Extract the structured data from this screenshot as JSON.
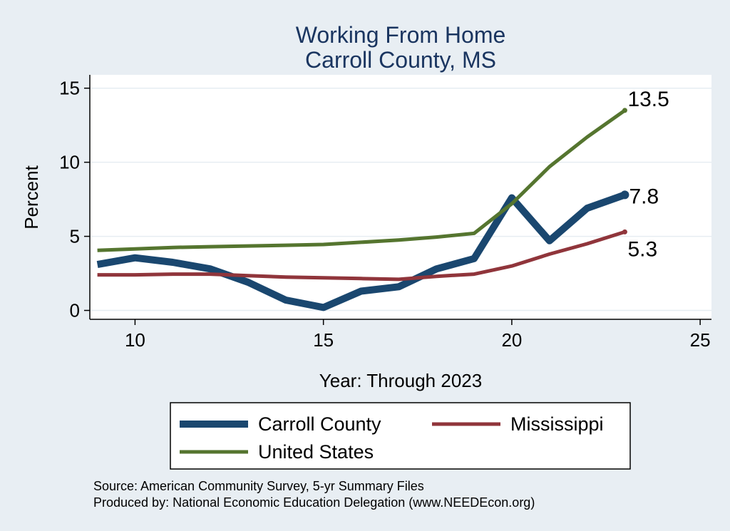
{
  "chart_data": {
    "type": "line",
    "title": [
      "Working From Home",
      "Carroll County, MS"
    ],
    "xlabel": "Year: Through 2023",
    "ylabel": "Percent",
    "xlim": [
      8.8,
      25.3
    ],
    "ylim": [
      -0.6,
      15.9
    ],
    "xticks": [
      10,
      15,
      20,
      25
    ],
    "yticks": [
      0,
      5,
      10,
      15
    ],
    "grid": true,
    "legend_position": "bottom",
    "series": [
      {
        "name": "Carroll County",
        "color": "#1a476f",
        "line_width": 10,
        "x": [
          9,
          10,
          11,
          12,
          13,
          14,
          15,
          16,
          17,
          18,
          19,
          20,
          21,
          22,
          23
        ],
        "y": [
          3.1,
          3.55,
          3.25,
          2.8,
          1.9,
          0.7,
          0.2,
          1.3,
          1.6,
          2.8,
          3.5,
          7.6,
          4.7,
          6.9,
          7.8
        ],
        "end_label": "7.8"
      },
      {
        "name": "Mississippi",
        "color": "#90353b",
        "line_width": 5,
        "x": [
          9,
          10,
          11,
          12,
          13,
          14,
          15,
          16,
          17,
          18,
          19,
          20,
          21,
          22,
          23
        ],
        "y": [
          2.4,
          2.4,
          2.45,
          2.45,
          2.35,
          2.25,
          2.2,
          2.15,
          2.1,
          2.3,
          2.45,
          3.0,
          3.8,
          4.5,
          5.3
        ],
        "end_label": "5.3"
      },
      {
        "name": "United States",
        "color": "#55752f",
        "line_width": 5,
        "x": [
          9,
          10,
          11,
          12,
          13,
          14,
          15,
          16,
          17,
          18,
          19,
          20,
          21,
          22,
          23
        ],
        "y": [
          4.05,
          4.15,
          4.25,
          4.3,
          4.35,
          4.4,
          4.45,
          4.6,
          4.75,
          4.95,
          5.2,
          7.2,
          9.7,
          11.7,
          13.5
        ],
        "end_label": "13.5"
      }
    ],
    "source_lines": [
      "Source: American Community Survey, 5-yr Summary Files",
      "Produced by: National Economic Education Delegation (www.NEEDEcon.org)"
    ]
  }
}
